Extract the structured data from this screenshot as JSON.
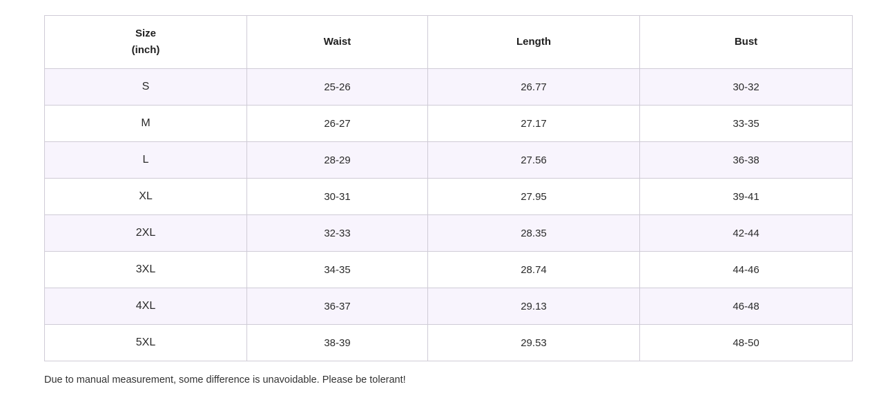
{
  "table": {
    "headers": {
      "size_line1": "Size",
      "size_line2": "(inch)",
      "waist": "Waist",
      "length": "Length",
      "bust": "Bust"
    },
    "rows": [
      {
        "size": "S",
        "waist": "25-26",
        "length": "26.77",
        "bust": "30-32"
      },
      {
        "size": "M",
        "waist": "26-27",
        "length": "27.17",
        "bust": "33-35"
      },
      {
        "size": "L",
        "waist": "28-29",
        "length": "27.56",
        "bust": "36-38"
      },
      {
        "size": "XL",
        "waist": "30-31",
        "length": "27.95",
        "bust": "39-41"
      },
      {
        "size": "2XL",
        "waist": "32-33",
        "length": "28.35",
        "bust": "42-44"
      },
      {
        "size": "3XL",
        "waist": "34-35",
        "length": "28.74",
        "bust": "44-46"
      },
      {
        "size": "4XL",
        "waist": "36-37",
        "length": "29.13",
        "bust": "46-48"
      },
      {
        "size": "5XL",
        "waist": "38-39",
        "length": "29.53",
        "bust": "48-50"
      }
    ]
  },
  "note": "Due to manual measurement, some difference is unavoidable. Please be tolerant!",
  "colors": {
    "shaded_row": "#f8f4fd",
    "border": "#cfcbd6"
  }
}
